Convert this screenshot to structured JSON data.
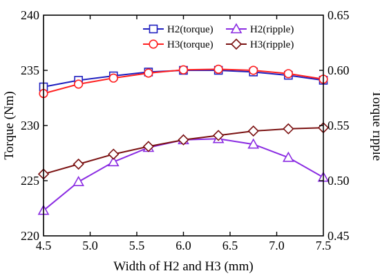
{
  "chart_data": {
    "type": "line",
    "title": "",
    "xlabel": "Width of H2 and H3 (mm)",
    "ylabel": "Torque (Nm)",
    "y2label": "Torque ripple",
    "xlim": [
      4.5,
      7.5
    ],
    "ylim": [
      220,
      240
    ],
    "y2lim": [
      0.45,
      0.65
    ],
    "x_ticks": [
      "4.5",
      "5.0",
      "5.5",
      "6.0",
      "6.5",
      "7.0",
      "7.5"
    ],
    "y_ticks": [
      "220",
      "225",
      "230",
      "235",
      "240"
    ],
    "y2_ticks": [
      "0.45",
      "0.50",
      "0.55",
      "0.60",
      "0.65"
    ],
    "grid": false,
    "legend_position": "top-right",
    "x": [
      4.5,
      4.875,
      5.25,
      5.625,
      6.0,
      6.375,
      6.75,
      7.125,
      7.5
    ],
    "series": [
      {
        "name": "H2(torque)",
        "axis": "left",
        "color": "#1f1fbf",
        "marker": "square",
        "values": [
          233.5,
          234.1,
          234.5,
          234.85,
          235.0,
          235.0,
          234.85,
          234.55,
          234.1
        ]
      },
      {
        "name": "H2(ripple)",
        "axis": "right",
        "color": "#8a2be2",
        "marker": "triangle",
        "values": [
          0.473,
          0.499,
          0.517,
          0.53,
          0.537,
          0.538,
          0.533,
          0.521,
          0.503
        ]
      },
      {
        "name": "H3(torque)",
        "axis": "left",
        "color": "#ff1f1f",
        "marker": "circle",
        "values": [
          232.9,
          233.75,
          234.3,
          234.75,
          235.05,
          235.1,
          235.0,
          234.7,
          234.2
        ]
      },
      {
        "name": "H3(ripple)",
        "axis": "right",
        "color": "#7a1010",
        "marker": "diamond",
        "values": [
          0.506,
          0.515,
          0.524,
          0.531,
          0.537,
          0.541,
          0.545,
          0.547,
          0.548
        ]
      }
    ]
  }
}
